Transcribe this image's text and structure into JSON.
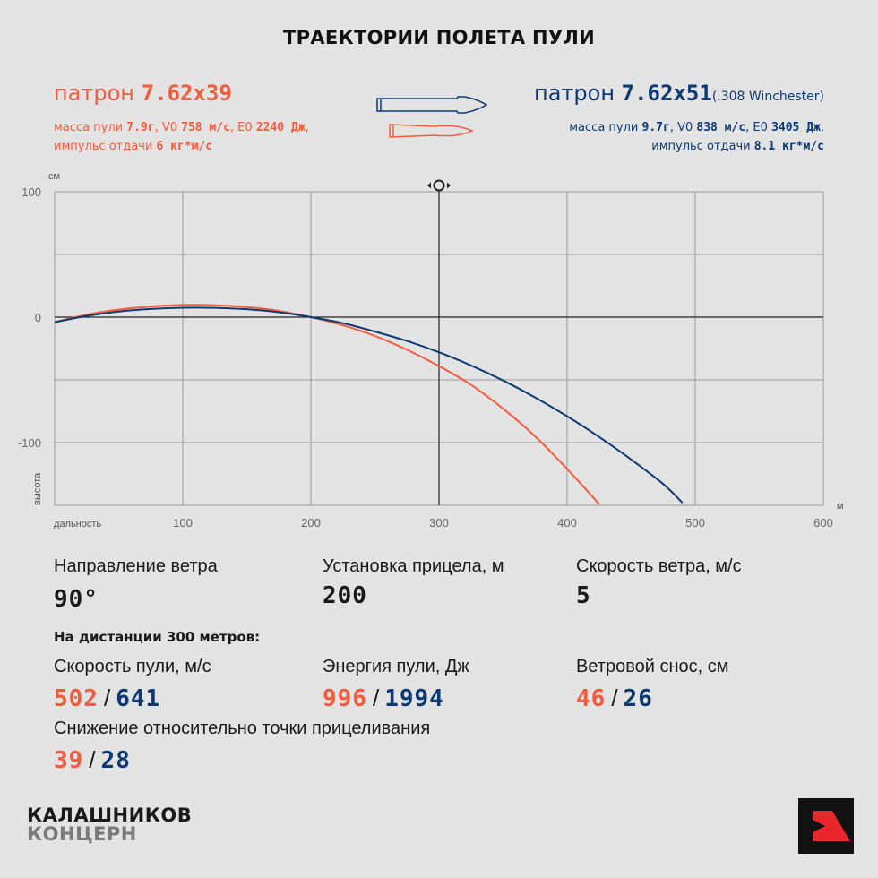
{
  "title": "ТРАЕКТОРИИ ПОЛЕТА ПУЛИ",
  "colors": {
    "orange": "#f25c3c",
    "blue": "#0c3a74",
    "background": "#e3e3e3",
    "grid": "#9a9a9a",
    "logo_red": "#e8262c"
  },
  "cartridge_left": {
    "prefix": "патрон ",
    "caliber": "7.62x39",
    "line1_a": "масса пули ",
    "mass": "7.9г",
    "line1_b": ", V0 ",
    "v0": "758 м/с",
    "line1_c": ", E0 ",
    "e0": "2240 Дж",
    "line1_d": ",",
    "line2_a": "импульс отдачи ",
    "impulse": "6 кг*м/с"
  },
  "cartridge_right": {
    "prefix": "патрон ",
    "caliber": "7.62x51",
    "suffix": "(.308 Winchester)",
    "line1_a": "масса пули ",
    "mass": "9.7г",
    "line1_b": ", V0 ",
    "v0": "838 м/с",
    "line1_c": ", E0 ",
    "e0": "3405 Дж",
    "line1_d": ",",
    "line2_a": "импульс отдачи ",
    "impulse": "8.1 кг*м/с"
  },
  "chart_data": {
    "type": "line",
    "title": "ТРАЕКТОРИИ ПОЛЕТА ПУЛИ",
    "xlabel": "дальность",
    "ylabel": "высота",
    "x_unit": "м",
    "y_unit": "см",
    "xlim": [
      0,
      600
    ],
    "ylim": [
      -150,
      100
    ],
    "x_ticks": [
      100,
      200,
      300,
      400,
      500,
      600
    ],
    "y_ticks": [
      100,
      0,
      -100
    ],
    "grid": true,
    "marker_x": 300,
    "series": [
      {
        "name": "7.62x39",
        "color": "#f25c3c",
        "x": [
          0,
          25,
          50,
          75,
          100,
          125,
          150,
          175,
          200,
          225,
          250,
          275,
          300,
          325,
          350,
          375,
          400,
          425
        ],
        "y": [
          -4,
          2,
          6,
          8.5,
          9.7,
          9.5,
          8,
          5,
          0,
          -6.5,
          -15,
          -26,
          -39,
          -54,
          -73,
          -95,
          -121,
          -149
        ]
      },
      {
        "name": "7.62x51",
        "color": "#0c3a74",
        "x": [
          0,
          25,
          50,
          75,
          100,
          125,
          150,
          175,
          200,
          225,
          250,
          275,
          300,
          325,
          350,
          375,
          400,
          425,
          450,
          475,
          490
        ],
        "y": [
          -4,
          1,
          4.5,
          6.5,
          7.5,
          7.4,
          6.3,
          3.9,
          0,
          -4.8,
          -11.5,
          -19,
          -28,
          -38.5,
          -50.5,
          -64,
          -79,
          -95.5,
          -113.5,
          -133,
          -148
        ]
      }
    ]
  },
  "conditions": {
    "wind_dir_label": "Направление ветра",
    "wind_dir_value": "90°",
    "sight_label": "Установка прицела, м",
    "sight_value": "200",
    "wind_speed_label": "Скорость ветра, м/с",
    "wind_speed_value": "5"
  },
  "distance_note": "На дистанции 300 метров:",
  "results": {
    "velocity_label": "Скорость пули, м/с",
    "velocity_a": "502",
    "velocity_b": "641",
    "energy_label": "Энергия пули, Дж",
    "energy_a": "996",
    "energy_b": "1994",
    "drift_label": "Ветровой снос, см",
    "drift_a": "46",
    "drift_b": "26",
    "drop_label": "Снижение относительно точки прицеливания",
    "drop_a": "39",
    "drop_b": "28",
    "separator": "/"
  },
  "logo": {
    "line1": "КАЛАШНИКОВ",
    "line2": "КОНЦЕРН",
    "icon": "kalashnikov-k-logo-icon"
  }
}
